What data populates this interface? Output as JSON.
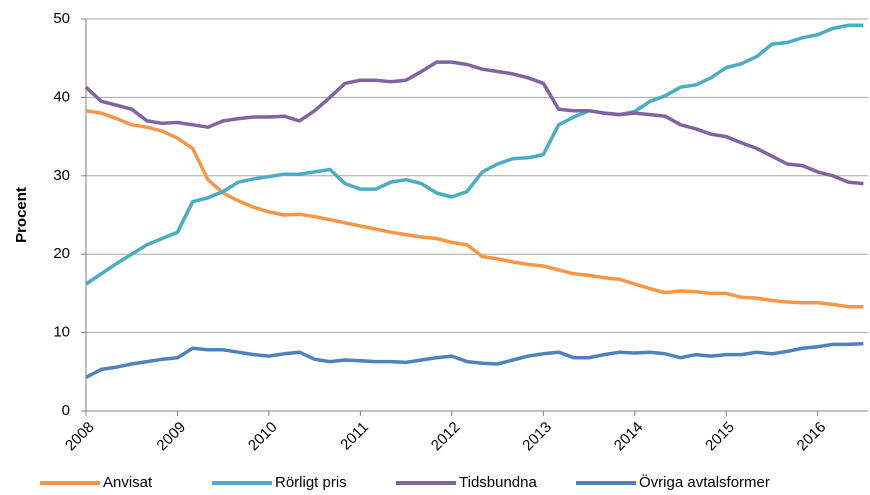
{
  "chart_data": {
    "type": "line",
    "y_label": "Procent",
    "x": [
      2008,
      2008.167,
      2008.333,
      2008.5,
      2008.667,
      2008.833,
      2009,
      2009.167,
      2009.333,
      2009.5,
      2009.667,
      2009.833,
      2010,
      2010.167,
      2010.333,
      2010.5,
      2010.667,
      2010.833,
      2011,
      2011.167,
      2011.333,
      2011.5,
      2011.667,
      2011.833,
      2012,
      2012.167,
      2012.333,
      2012.5,
      2012.667,
      2012.833,
      2013,
      2013.167,
      2013.333,
      2013.5,
      2013.667,
      2013.833,
      2014,
      2014.167,
      2014.333,
      2014.5,
      2014.667,
      2014.833,
      2015,
      2015.167,
      2015.333,
      2015.5,
      2015.667,
      2015.833,
      2016,
      2016.167,
      2016.333,
      2016.5
    ],
    "xlim": [
      2008,
      2016.55
    ],
    "xticks": [
      2008,
      2009,
      2010,
      2011,
      2012,
      2013,
      2014,
      2015,
      2016
    ],
    "ylim": [
      0,
      50
    ],
    "yticks": [
      0,
      10,
      20,
      30,
      40,
      50
    ],
    "grid": true,
    "legend": "bottom",
    "series": [
      {
        "name": "Anvisat",
        "color": "#f79646",
        "values": [
          38.3,
          38.0,
          37.3,
          36.5,
          36.2,
          35.7,
          34.8,
          33.5,
          29.5,
          27.8,
          26.8,
          26.0,
          25.4,
          25.0,
          25.1,
          24.8,
          24.4,
          24.0,
          23.6,
          23.2,
          22.8,
          22.5,
          22.2,
          22.0,
          21.5,
          21.2,
          19.7,
          19.4,
          19.0,
          18.7,
          18.5,
          18.0,
          17.5,
          17.3,
          17.0,
          16.8,
          16.2,
          15.6,
          15.1,
          15.3,
          15.2,
          15.0,
          15.0,
          14.5,
          14.4,
          14.1,
          13.9,
          13.8,
          13.8,
          13.6,
          13.3,
          13.3
        ]
      },
      {
        "name": "Rörligt pris",
        "color": "#4bacc6",
        "values": [
          16.2,
          17.5,
          18.8,
          20.0,
          21.2,
          22.0,
          22.8,
          26.7,
          27.2,
          28.0,
          29.2,
          29.6,
          29.9,
          30.2,
          30.2,
          30.5,
          30.8,
          29.0,
          28.3,
          28.3,
          29.2,
          29.5,
          29.0,
          27.8,
          27.3,
          28.0,
          30.5,
          31.5,
          32.2,
          32.3,
          32.7,
          36.5,
          37.5,
          38.3,
          38.0,
          37.8,
          38.2,
          39.5,
          40.2,
          41.3,
          41.6,
          42.5,
          43.8,
          44.3,
          45.2,
          46.8,
          47.0,
          47.6,
          48.0,
          48.8,
          49.2,
          49.2
        ]
      },
      {
        "name": "Tidsbundna",
        "color": "#8064a2",
        "values": [
          41.3,
          39.5,
          39.0,
          38.5,
          37.0,
          36.7,
          36.8,
          36.5,
          36.2,
          37.0,
          37.3,
          37.5,
          37.5,
          37.6,
          37.0,
          38.3,
          40.0,
          41.8,
          42.2,
          42.2,
          42.0,
          42.2,
          43.3,
          44.5,
          44.5,
          44.2,
          43.6,
          43.3,
          43.0,
          42.5,
          41.8,
          38.5,
          38.3,
          38.3,
          38.0,
          37.8,
          38.0,
          37.8,
          37.6,
          36.5,
          36.0,
          35.3,
          35.0,
          34.2,
          33.5,
          32.5,
          31.5,
          31.3,
          30.5,
          30.0,
          29.2,
          29.0
        ]
      },
      {
        "name": "Övriga avtalsformer",
        "color": "#4f81bd",
        "values": [
          4.3,
          5.3,
          5.6,
          6.0,
          6.3,
          6.6,
          6.8,
          8.0,
          7.8,
          7.8,
          7.5,
          7.2,
          7.0,
          7.3,
          7.5,
          6.6,
          6.3,
          6.5,
          6.4,
          6.3,
          6.3,
          6.2,
          6.5,
          6.8,
          7.0,
          6.3,
          6.1,
          6.0,
          6.5,
          7.0,
          7.3,
          7.5,
          6.8,
          6.8,
          7.2,
          7.5,
          7.4,
          7.5,
          7.3,
          6.8,
          7.2,
          7.0,
          7.2,
          7.2,
          7.5,
          7.3,
          7.6,
          8.0,
          8.2,
          8.5,
          8.5,
          8.6
        ]
      }
    ]
  }
}
